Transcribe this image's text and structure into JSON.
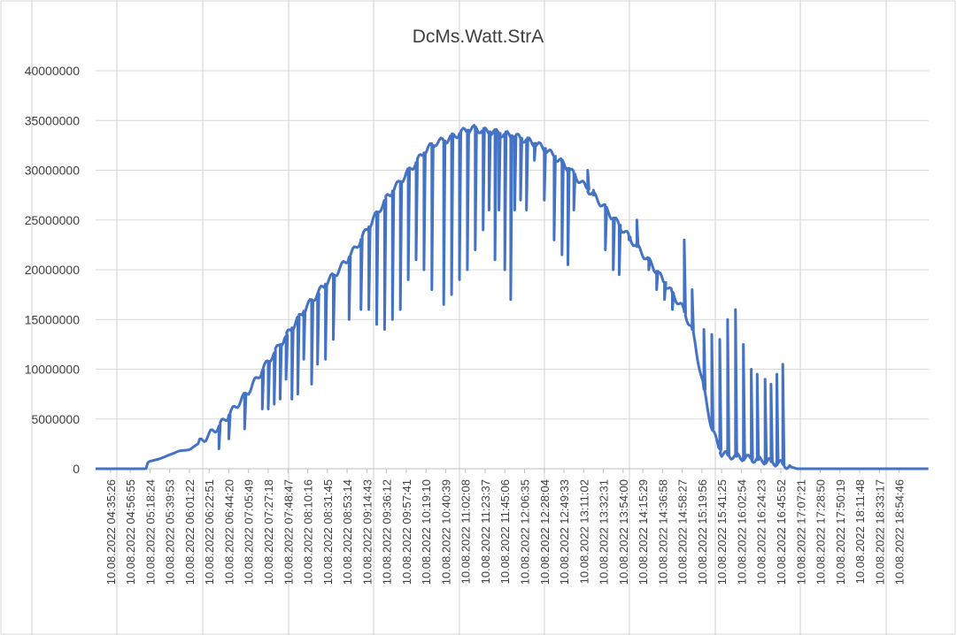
{
  "chart_data": {
    "type": "line",
    "title": "DcMs.Watt.StrA",
    "xlabel": "",
    "ylabel": "",
    "ylim": [
      0,
      40000000
    ],
    "yticks": [
      0,
      5000000,
      10000000,
      15000000,
      20000000,
      25000000,
      30000000,
      35000000,
      40000000
    ],
    "ytick_labels": [
      "0",
      "5000000",
      "10000000",
      "15000000",
      "20000000",
      "25000000",
      "30000000",
      "35000000",
      "40000000"
    ],
    "grid": true,
    "legend": "none",
    "x_tick_labels": [
      "10.08.2022 04:35:26",
      "10.08.2022 04:56:55",
      "10.08.2022 05:18:24",
      "10.08.2022 05:39:53",
      "10.08.2022 06:01:22",
      "10.08.2022 06:22:51",
      "10.08.2022 06:44:20",
      "10.08.2022 07:05:49",
      "10.08.2022 07:27:18",
      "10.08.2022 07:48:47",
      "10.08.2022 08:10:16",
      "10.08.2022 08:31:45",
      "10.08.2022 08:53:14",
      "10.08.2022 09:14:43",
      "10.08.2022 09:36:12",
      "10.08.2022 09:57:41",
      "10.08.2022 10:19:10",
      "10.08.2022 10:40:39",
      "10.08.2022 11:02:08",
      "10.08.2022 11:23:37",
      "10.08.2022 11:45:06",
      "10.08.2022 12:06:35",
      "10.08.2022 12:28:04",
      "10.08.2022 12:49:33",
      "10.08.2022 13:11:02",
      "10.08.2022 13:32:31",
      "10.08.2022 13:54:00",
      "10.08.2022 14:15:29",
      "10.08.2022 14:36:58",
      "10.08.2022 14:58:27",
      "10.08.2022 15:19:56",
      "10.08.2022 15:41:25",
      "10.08.2022 16:02:54",
      "10.08.2022 16:24:23",
      "10.08.2022 16:45:52",
      "10.08.2022 17:07:21",
      "10.08.2022 17:28:50",
      "10.08.2022 17:50:19",
      "10.08.2022 18:11:48",
      "10.08.2022 18:33:17",
      "10.08.2022 18:54:46"
    ],
    "series": [
      {
        "name": "DcMs.Watt.StrA",
        "color": "#4472c4",
        "x_index": [
          0,
          1.3,
          1.4,
          2,
          2.5,
          3,
          3.5,
          4,
          4.5,
          5,
          5.5,
          6,
          6.5,
          7,
          7.5,
          8,
          8.5,
          9,
          9.5,
          10,
          10.5,
          11,
          11.5,
          12,
          12.5,
          13,
          13.5,
          14,
          14.5,
          15,
          15.5,
          16,
          16.5,
          17,
          17.5,
          18,
          18.5,
          19,
          19.5,
          20,
          20.5,
          21,
          21.5,
          22,
          22.5,
          23,
          23.5,
          24,
          24.5,
          25,
          25.5,
          26,
          26.5,
          27,
          27.5,
          28,
          28.5,
          29,
          29.5,
          30,
          30.5,
          31,
          31.5,
          32,
          32.5,
          33,
          33.5,
          34,
          34.3,
          34.7,
          35,
          35.3,
          35.6,
          36,
          36.5,
          37,
          38,
          39,
          40,
          40.5,
          41
        ],
        "values": [
          0,
          0,
          700000,
          1000000,
          1400000,
          1800000,
          1900000,
          2600000,
          3400000,
          4300000,
          5400000,
          6600000,
          7800000,
          9300000,
          10800000,
          12200000,
          13600000,
          15000000,
          16400000,
          17600000,
          18800000,
          19800000,
          21000000,
          22400000,
          24000000,
          25600000,
          27200000,
          28400000,
          29600000,
          30800000,
          32000000,
          32800000,
          33000000,
          33500000,
          34000000,
          34200000,
          33900000,
          33800000,
          33600000,
          33400000,
          33100000,
          32700000,
          32200000,
          31400000,
          30600000,
          29600000,
          28500000,
          27500000,
          26400000,
          25200000,
          24000000,
          22800000,
          21600000,
          20400000,
          19000000,
          17600000,
          16200000,
          14000000,
          9000000,
          4000000,
          1500000,
          1300000,
          1150000,
          1000000,
          850000,
          700000,
          500000,
          200000,
          0,
          0,
          0,
          0,
          0,
          0,
          0,
          0,
          0,
          0,
          0,
          0,
          0
        ]
      }
    ],
    "dips": [
      {
        "x": 5.0,
        "low": 2000000
      },
      {
        "x": 5.5,
        "low": 3000000
      },
      {
        "x": 6.3,
        "low": 4000000
      },
      {
        "x": 7.2,
        "low": 6000000
      },
      {
        "x": 7.5,
        "low": 6000000
      },
      {
        "x": 7.8,
        "low": 6500000
      },
      {
        "x": 8.1,
        "low": 7000000
      },
      {
        "x": 8.4,
        "low": 9000000
      },
      {
        "x": 8.7,
        "low": 7000000
      },
      {
        "x": 9.0,
        "low": 7500000
      },
      {
        "x": 9.3,
        "low": 11000000
      },
      {
        "x": 9.7,
        "low": 8500000
      },
      {
        "x": 10.0,
        "low": 10500000
      },
      {
        "x": 10.4,
        "low": 11000000
      },
      {
        "x": 10.8,
        "low": 13000000
      },
      {
        "x": 11.6,
        "low": 15000000
      },
      {
        "x": 12.2,
        "low": 16000000
      },
      {
        "x": 12.6,
        "low": 16000000
      },
      {
        "x": 13.0,
        "low": 14500000
      },
      {
        "x": 13.4,
        "low": 14000000
      },
      {
        "x": 13.8,
        "low": 15000000
      },
      {
        "x": 14.2,
        "low": 16000000
      },
      {
        "x": 14.6,
        "low": 19000000
      },
      {
        "x": 15.0,
        "low": 21000000
      },
      {
        "x": 15.4,
        "low": 20000000
      },
      {
        "x": 15.8,
        "low": 18000000
      },
      {
        "x": 16.4,
        "low": 16500000
      },
      {
        "x": 16.8,
        "low": 17500000
      },
      {
        "x": 17.2,
        "low": 19000000
      },
      {
        "x": 17.6,
        "low": 20000000
      },
      {
        "x": 18.0,
        "low": 22000000
      },
      {
        "x": 18.4,
        "low": 24000000
      },
      {
        "x": 18.7,
        "low": 26000000
      },
      {
        "x": 19.0,
        "low": 21000000
      },
      {
        "x": 19.2,
        "low": 26000000
      },
      {
        "x": 19.5,
        "low": 20000000
      },
      {
        "x": 19.8,
        "low": 17000000
      },
      {
        "x": 20.0,
        "low": 26000000
      },
      {
        "x": 20.3,
        "low": 27000000
      },
      {
        "x": 20.6,
        "low": 26000000
      },
      {
        "x": 21.0,
        "low": 31000000
      },
      {
        "x": 21.5,
        "low": 27000000
      },
      {
        "x": 22.0,
        "low": 23000000
      },
      {
        "x": 22.4,
        "low": 21500000
      },
      {
        "x": 22.7,
        "low": 20500000
      },
      {
        "x": 23.0,
        "low": 26000000
      },
      {
        "x": 23.7,
        "low": 30000000
      },
      {
        "x": 24.0,
        "low": 28000000
      },
      {
        "x": 24.6,
        "low": 22000000
      },
      {
        "x": 25.0,
        "low": 20000000
      },
      {
        "x": 25.3,
        "low": 19500000
      },
      {
        "x": 25.8,
        "low": 23000000
      },
      {
        "x": 26.2,
        "low": 25000000
      },
      {
        "x": 26.8,
        "low": 20000000
      },
      {
        "x": 27.2,
        "low": 18000000
      },
      {
        "x": 27.6,
        "low": 17000000
      },
      {
        "x": 28.0,
        "low": 16000000
      },
      {
        "x": 28.6,
        "low": 23000000
      },
      {
        "x": 29.0,
        "low": 18000000
      },
      {
        "x": 29.6,
        "low": 14000000
      },
      {
        "x": 30.0,
        "low": 13500000
      },
      {
        "x": 30.4,
        "low": 13000000
      },
      {
        "x": 30.8,
        "low": 15000000
      },
      {
        "x": 31.2,
        "low": 16000000
      },
      {
        "x": 31.6,
        "low": 12500000
      },
      {
        "x": 32.0,
        "low": 10000000
      },
      {
        "x": 32.3,
        "low": 9500000
      },
      {
        "x": 32.7,
        "low": 9000000
      },
      {
        "x": 33.0,
        "low": 8500000
      },
      {
        "x": 33.3,
        "low": 9500000
      },
      {
        "x": 33.6,
        "low": 10500000
      }
    ]
  }
}
